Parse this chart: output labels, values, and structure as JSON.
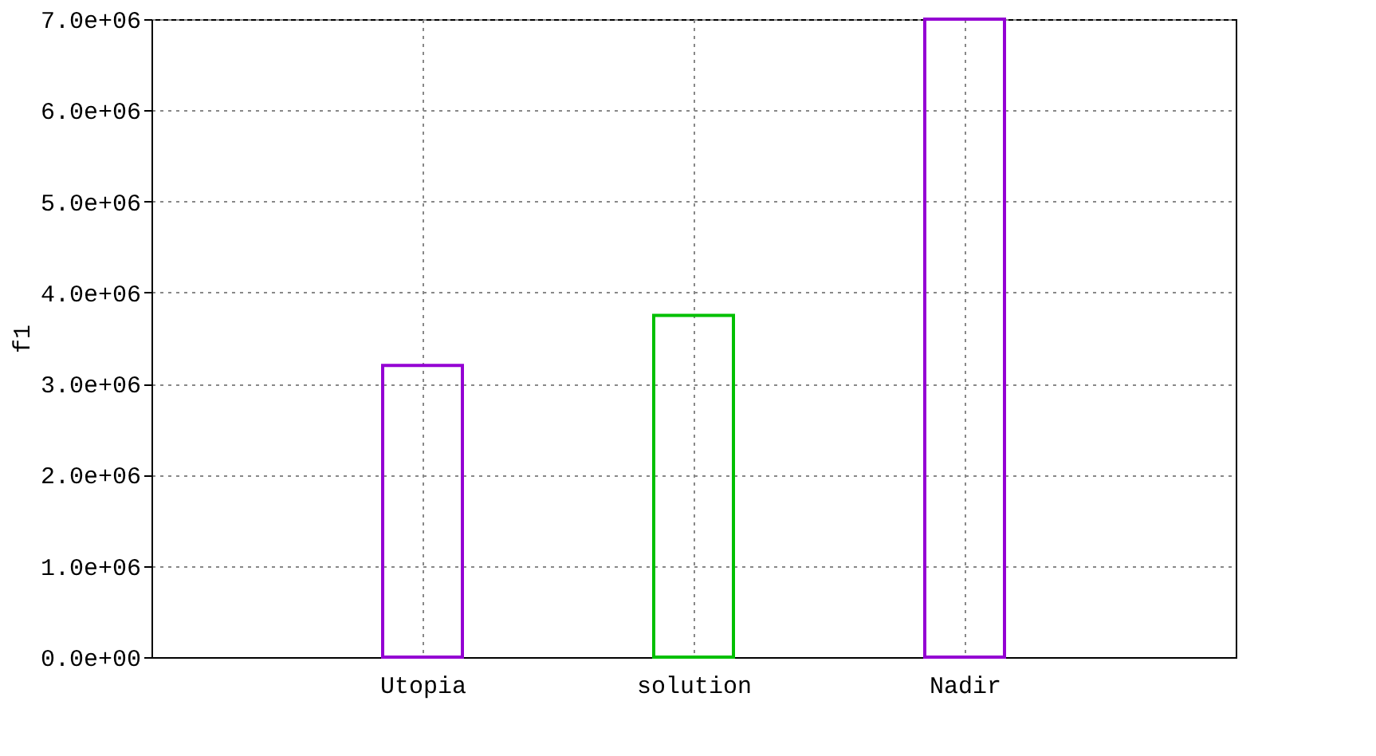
{
  "chart_data": {
    "type": "bar",
    "ylabel": "f1",
    "categories": [
      "Utopia",
      "solution",
      "Nadir"
    ],
    "values": [
      3200000,
      3750000,
      7000000
    ],
    "colors": [
      "#9400d3",
      "#00c000",
      "#9400d3"
    ],
    "ylim": [
      0,
      7000000
    ],
    "yticks": [
      {
        "value": 0,
        "label": "0.0e+00"
      },
      {
        "value": 1000000,
        "label": "1.0e+06"
      },
      {
        "value": 2000000,
        "label": "2.0e+06"
      },
      {
        "value": 3000000,
        "label": "3.0e+06"
      },
      {
        "value": 4000000,
        "label": "4.0e+06"
      },
      {
        "value": 5000000,
        "label": "5.0e+06"
      },
      {
        "value": 6000000,
        "label": "6.0e+06"
      },
      {
        "value": 7000000,
        "label": "7.0e+06"
      }
    ],
    "grid": true
  }
}
